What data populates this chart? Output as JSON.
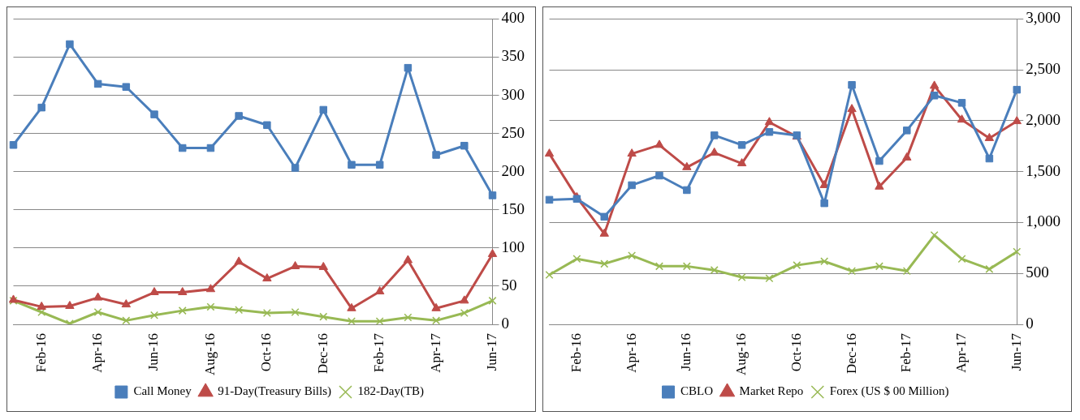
{
  "chart_data": [
    {
      "type": "line",
      "categories": [
        null,
        "Feb-16",
        null,
        "Apr-16",
        null,
        "Jun-16",
        null,
        "Aug-16",
        null,
        "Oct-16",
        null,
        "Dec-16",
        null,
        "Feb-17",
        null,
        "Apr-17",
        null,
        "Jun-17"
      ],
      "series": [
        {
          "name": "Call Money",
          "color": "#4a7ebb",
          "marker": "square",
          "values": [
            235,
            284,
            367,
            315,
            311,
            275,
            231,
            231,
            273,
            261,
            205,
            281,
            209,
            209,
            336,
            222,
            234,
            169
          ]
        },
        {
          "name": "91-Day(Treasury Bills)",
          "color": "#be4b48",
          "marker": "triangle",
          "values": [
            32,
            23,
            24,
            35,
            26,
            42,
            42,
            46,
            82,
            60,
            76,
            75,
            21,
            43,
            84,
            21,
            31,
            92
          ]
        },
        {
          "name": "182-Day(TB)",
          "color": "#98b954",
          "marker": "cross",
          "values": [
            31,
            16,
            1,
            16,
            5,
            12,
            18,
            23,
            19,
            15,
            16,
            10,
            4,
            4,
            9,
            5,
            15,
            31
          ]
        }
      ],
      "ylim": [
        0,
        400
      ],
      "yticks": [
        0,
        50,
        100,
        150,
        200,
        250,
        300,
        350,
        400
      ],
      "grid": "y",
      "legend": "bottom"
    },
    {
      "type": "line",
      "categories": [
        null,
        "Feb-16",
        null,
        "Apr-16",
        null,
        "Jun-16",
        null,
        "Aug-16",
        null,
        "Oct-16",
        null,
        "Dec-16",
        null,
        "Feb-17",
        null,
        "Apr-17",
        null,
        "Jun-17"
      ],
      "series": [
        {
          "name": "CBLO",
          "color": "#4a7ebb",
          "marker": "square",
          "values": [
            1224,
            1233,
            1057,
            1367,
            1462,
            1319,
            1857,
            1762,
            1890,
            1857,
            1190,
            2352,
            1605,
            1905,
            2248,
            2176,
            1629,
            2305
          ]
        },
        {
          "name": "Market Repo",
          "color": "#be4b48",
          "marker": "triangle",
          "values": [
            1676,
            1248,
            890,
            1676,
            1762,
            1543,
            1686,
            1581,
            1986,
            1843,
            1367,
            2114,
            1352,
            1638,
            2343,
            2010,
            1829,
            1995
          ]
        },
        {
          "name": "Forex (US $ 00 Million)",
          "color": "#98b954",
          "marker": "cross",
          "values": [
            486,
            643,
            595,
            676,
            571,
            571,
            533,
            462,
            452,
            581,
            619,
            524,
            571,
            524,
            876,
            643,
            543,
            714
          ]
        }
      ],
      "ylim": [
        0,
        3000
      ],
      "yticks": [
        0,
        {
          "value": 500,
          "label": "500"
        },
        {
          "value": 1000,
          "label": "1,000"
        },
        {
          "value": 1500,
          "label": "1,500"
        },
        {
          "value": 2000,
          "label": "2,000"
        },
        {
          "value": 2500,
          "label": "2,500"
        },
        {
          "value": 3000,
          "label": "3,000"
        }
      ],
      "grid": "y",
      "legend": "bottom"
    }
  ]
}
